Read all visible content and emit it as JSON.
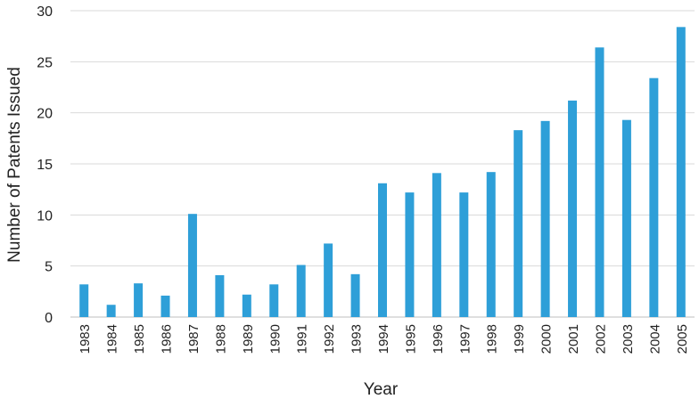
{
  "chart_data": {
    "type": "bar",
    "xlabel": "Year",
    "ylabel": "Number of Patents Issued",
    "ylim": [
      0,
      30
    ],
    "yticks": [
      0,
      5,
      10,
      15,
      20,
      25,
      30
    ],
    "grid": true,
    "bar_color": "#2e9fd8",
    "categories": [
      "1983",
      "1984",
      "1985",
      "1986",
      "1987",
      "1988",
      "1989",
      "1990",
      "1991",
      "1992",
      "1993",
      "1994",
      "1995",
      "1996",
      "1997",
      "1998",
      "1999",
      "2000",
      "2001",
      "2002",
      "2003",
      "2004",
      "2005"
    ],
    "values": [
      3.2,
      1.2,
      3.3,
      2.1,
      10.1,
      4.1,
      2.2,
      3.2,
      5.1,
      7.2,
      4.2,
      13.1,
      12.2,
      14.1,
      12.2,
      14.2,
      18.3,
      19.2,
      21.2,
      26.4,
      19.3,
      23.4,
      28.4
    ]
  }
}
